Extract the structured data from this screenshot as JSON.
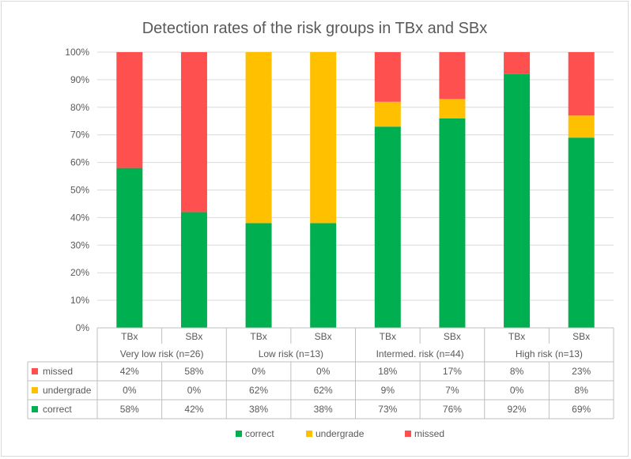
{
  "chart_data": {
    "type": "bar",
    "stacked": true,
    "title": "Detection rates of the risk groups in TBx and SBx",
    "ylim": [
      0,
      100
    ],
    "yticks": [
      "0%",
      "10%",
      "20%",
      "30%",
      "40%",
      "50%",
      "60%",
      "70%",
      "80%",
      "90%",
      "100%"
    ],
    "groups": [
      {
        "label": "Very low risk (n=26)",
        "bars": [
          "TBx",
          "SBx"
        ]
      },
      {
        "label": "Low risk  (n=13)",
        "bars": [
          "TBx",
          "SBx"
        ]
      },
      {
        "label": "Intermed. risk (n=44)",
        "bars": [
          "TBx",
          "SBx"
        ]
      },
      {
        "label": "High risk (n=13)",
        "bars": [
          "TBx",
          "SBx"
        ]
      }
    ],
    "categories": [
      "TBx",
      "SBx",
      "TBx",
      "SBx",
      "TBx",
      "SBx",
      "TBx",
      "SBx"
    ],
    "series": [
      {
        "name": "correct",
        "color": "#00b050",
        "values": [
          58,
          42,
          38,
          38,
          73,
          76,
          92,
          69
        ],
        "labels": [
          "58%",
          "42%",
          "38%",
          "38%",
          "73%",
          "76%",
          "92%",
          "69%"
        ]
      },
      {
        "name": "undergrade",
        "color": "#ffc000",
        "values": [
          0,
          0,
          62,
          62,
          9,
          7,
          0,
          8
        ],
        "labels": [
          "0%",
          "0%",
          "62%",
          "62%",
          "9%",
          "7%",
          "0%",
          "8%"
        ]
      },
      {
        "name": "missed",
        "color": "#ff5050",
        "values": [
          42,
          58,
          0,
          0,
          18,
          17,
          8,
          23
        ],
        "labels": [
          "42%",
          "58%",
          "0%",
          "0%",
          "18%",
          "17%",
          "8%",
          "23%"
        ]
      }
    ],
    "table_rows": [
      "missed",
      "undergrade",
      "correct"
    ],
    "legend": [
      "correct",
      "undergrade",
      "missed"
    ],
    "legend_position": "bottom"
  }
}
